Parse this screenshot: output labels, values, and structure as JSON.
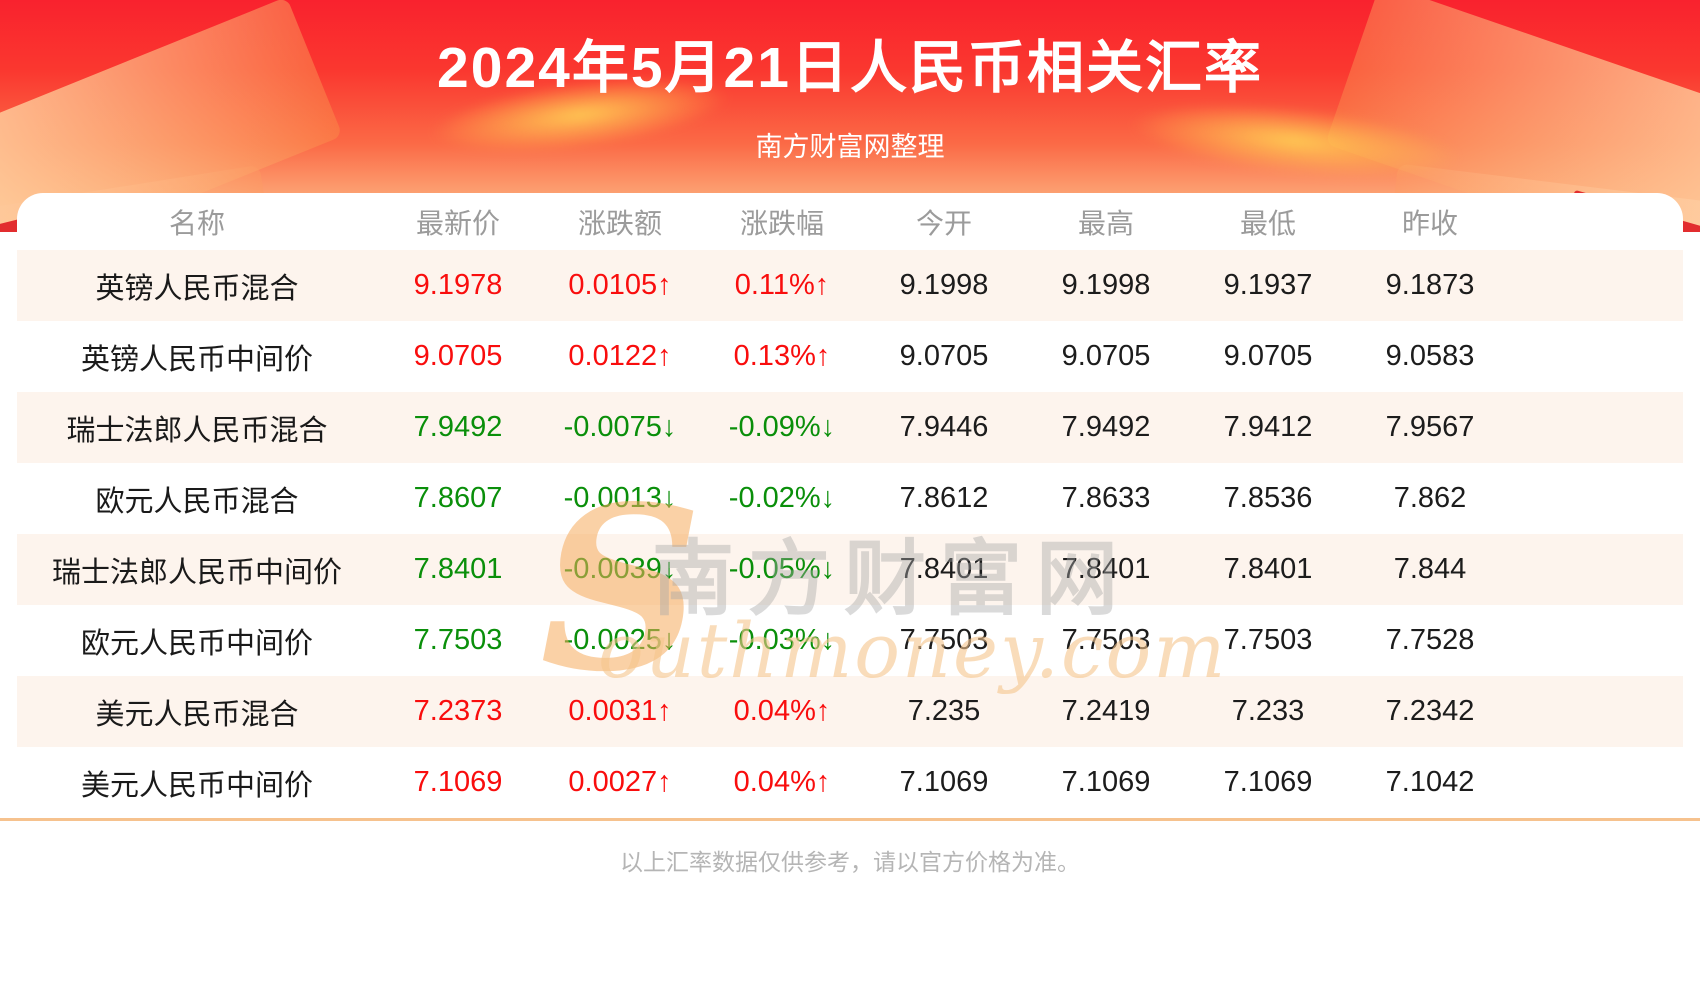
{
  "chart_data": {
    "type": "table",
    "title": "2024年5月21日人民币相关汇率",
    "subtitle": "南方财富网整理",
    "columns": [
      "名称",
      "最新价",
      "涨跌额",
      "涨跌幅",
      "今开",
      "最高",
      "最低",
      "昨收"
    ],
    "rows": [
      {
        "name": "英镑人民币混合",
        "latest": "9.1978",
        "change": "0.0105↑",
        "change_pct": "0.11%↑",
        "open": "9.1998",
        "high": "9.1998",
        "low": "9.1937",
        "prev_close": "9.1873",
        "direction": "up"
      },
      {
        "name": "英镑人民币中间价",
        "latest": "9.0705",
        "change": "0.0122↑",
        "change_pct": "0.13%↑",
        "open": "9.0705",
        "high": "9.0705",
        "low": "9.0705",
        "prev_close": "9.0583",
        "direction": "up"
      },
      {
        "name": "瑞士法郎人民币混合",
        "latest": "7.9492",
        "change": "-0.0075↓",
        "change_pct": "-0.09%↓",
        "open": "7.9446",
        "high": "7.9492",
        "low": "7.9412",
        "prev_close": "7.9567",
        "direction": "down"
      },
      {
        "name": "欧元人民币混合",
        "latest": "7.8607",
        "change": "-0.0013↓",
        "change_pct": "-0.02%↓",
        "open": "7.8612",
        "high": "7.8633",
        "low": "7.8536",
        "prev_close": "7.862",
        "direction": "down"
      },
      {
        "name": "瑞士法郎人民币中间价",
        "latest": "7.8401",
        "change": "-0.0039↓",
        "change_pct": "-0.05%↓",
        "open": "7.8401",
        "high": "7.8401",
        "low": "7.8401",
        "prev_close": "7.844",
        "direction": "down"
      },
      {
        "name": "欧元人民币中间价",
        "latest": "7.7503",
        "change": "-0.0025↓",
        "change_pct": "-0.03%↓",
        "open": "7.7503",
        "high": "7.7503",
        "low": "7.7503",
        "prev_close": "7.7528",
        "direction": "down"
      },
      {
        "name": "美元人民币混合",
        "latest": "7.2373",
        "change": "0.0031↑",
        "change_pct": "0.04%↑",
        "open": "7.235",
        "high": "7.2419",
        "low": "7.233",
        "prev_close": "7.2342",
        "direction": "up"
      },
      {
        "name": "美元人民币中间价",
        "latest": "7.1069",
        "change": "0.0027↑",
        "change_pct": "0.04%↑",
        "open": "7.1069",
        "high": "7.1069",
        "low": "7.1069",
        "prev_close": "7.1042",
        "direction": "up"
      }
    ],
    "footnote": "以上汇率数据仅供参考，请以官方价格为准。",
    "legend_position": "none",
    "grid": "row-stripes"
  },
  "watermark": {
    "initial": "S",
    "cn_text": "南方财富网",
    "en_text": "outhmoney.com"
  },
  "colors": {
    "up": "#f90d0d",
    "down": "#0a8f0a",
    "banner_red_top": "#f9222e",
    "banner_peach_bottom": "#fdc69b",
    "stripe": "#fdf4ed",
    "divider": "#f6c28e",
    "header_text": "#9b9b9b",
    "value_text": "#1c1c1c"
  }
}
